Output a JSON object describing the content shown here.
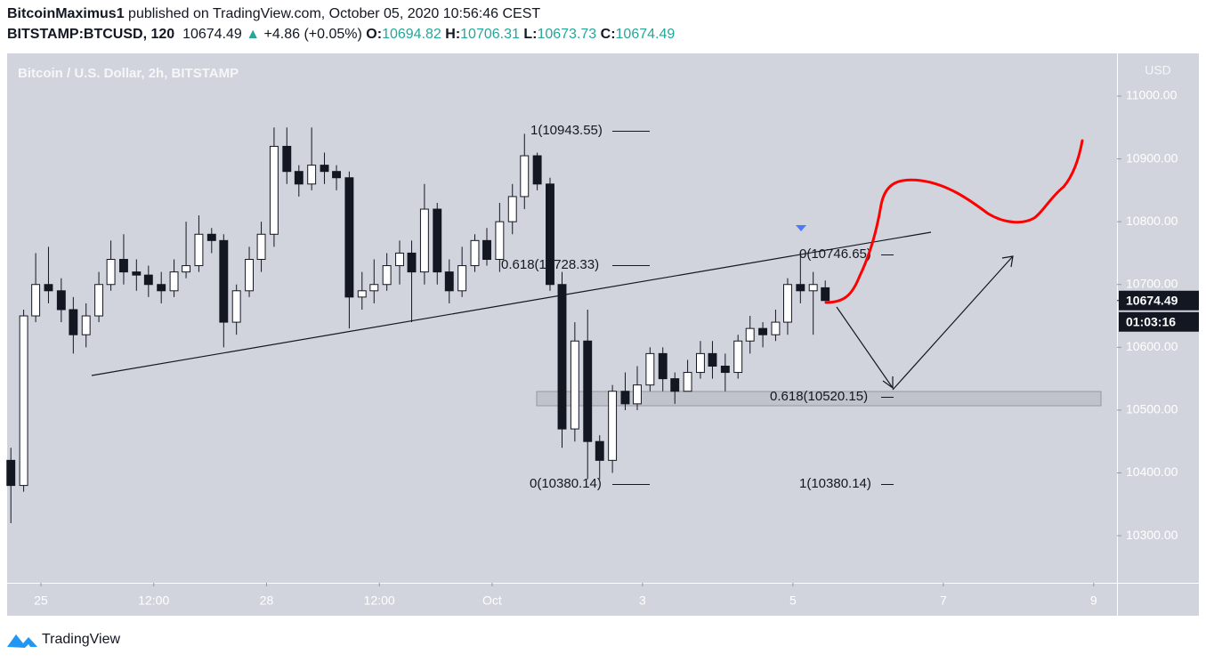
{
  "header": {
    "author": "BitcoinMaximus1",
    "published": "published on TradingView.com, October 05, 2020 10:56:46 CEST",
    "symbol": "BITSTAMP:BTCUSD, 120",
    "last": 10674.49,
    "arrow": "▲",
    "change": "+4.86 (+0.05%)",
    "o_label": "O:",
    "o": 10694.82,
    "h_label": "H:",
    "h": 10706.31,
    "l_label": "L:",
    "l": 10673.73,
    "c_label": "C:",
    "c": 10674.49
  },
  "chart_data": {
    "type": "candlestick",
    "title": "Bitcoin / U.S. Dollar, 2h, BITSTAMP",
    "y_axis_label": "USD",
    "up_color": "#ffffff",
    "down_color": "#131722",
    "x": [
      -0.4,
      -0.23,
      -0.07,
      0.1,
      0.27,
      0.43,
      0.6,
      0.77,
      0.93,
      1.1,
      1.27,
      1.43,
      1.6,
      1.77,
      1.93,
      2.1,
      2.27,
      2.43,
      2.6,
      2.77,
      2.93,
      3.1,
      3.27,
      3.43,
      3.6,
      3.77,
      3.93,
      4.1,
      4.27,
      4.43,
      4.6,
      4.77,
      4.93,
      5.1,
      5.27,
      5.43,
      5.6,
      5.77,
      5.93,
      6.1,
      6.27,
      6.43,
      6.6,
      6.77,
      6.93,
      7.1,
      7.27,
      7.43,
      7.6,
      7.77,
      7.93,
      8.1,
      8.27,
      8.43,
      8.6,
      8.77,
      8.93,
      9.1,
      9.27,
      9.43,
      9.6,
      9.77,
      9.93,
      10.1,
      10.27,
      10.43
    ],
    "open": [
      10420,
      10380,
      10650,
      10700,
      10690,
      10660,
      10620,
      10650,
      10700,
      10740,
      10720,
      10715,
      10700,
      10690,
      10720,
      10730,
      10780,
      10770,
      10640,
      10690,
      10740,
      10780,
      10920,
      10880,
      10860,
      10890,
      10880,
      10870,
      10680,
      10690,
      10700,
      10730,
      10750,
      10720,
      10820,
      10720,
      10690,
      10730,
      10770,
      10740,
      10800,
      10840,
      10905,
      10860,
      10700,
      10470,
      10610,
      10450,
      10420,
      10530,
      10510,
      10540,
      10590,
      10550,
      10530,
      10560,
      10590,
      10570,
      10560,
      10610,
      10630,
      10620,
      10640,
      10700,
      10690,
      10694.82
    ],
    "high": [
      10440,
      10660,
      10750,
      10760,
      10710,
      10680,
      10670,
      10720,
      10770,
      10780,
      10740,
      10730,
      10720,
      10740,
      10800,
      10810,
      10790,
      10780,
      10700,
      10760,
      10800,
      10950,
      10950,
      10890,
      10950,
      10910,
      10890,
      10880,
      10720,
      10740,
      10750,
      10770,
      10770,
      10860,
      10830,
      10740,
      10760,
      10780,
      10790,
      10830,
      10860,
      10940,
      10910,
      10870,
      10720,
      10640,
      10660,
      10460,
      10540,
      10560,
      10570,
      10600,
      10600,
      10560,
      10580,
      10610,
      10610,
      10590,
      10620,
      10650,
      10640,
      10660,
      10710,
      10750,
      10720,
      10706.31
    ],
    "low": [
      10320,
      10370,
      10640,
      10670,
      10640,
      10590,
      10600,
      10640,
      10690,
      10700,
      10690,
      10680,
      10670,
      10680,
      10710,
      10720,
      10750,
      10600,
      10620,
      10680,
      10720,
      10760,
      10860,
      10840,
      10850,
      10860,
      10850,
      10630,
      10660,
      10670,
      10690,
      10700,
      10640,
      10700,
      10700,
      10670,
      10680,
      10720,
      10730,
      10720,
      10780,
      10820,
      10850,
      10690,
      10440,
      10450,
      10390,
      10390,
      10400,
      10500,
      10500,
      10530,
      10530,
      10510,
      10530,
      10550,
      10550,
      10530,
      10550,
      10590,
      10600,
      10610,
      10620,
      10670,
      10620,
      10673.73
    ],
    "close": [
      10380,
      10650,
      10700,
      10690,
      10660,
      10620,
      10650,
      10700,
      10740,
      10720,
      10715,
      10700,
      10690,
      10720,
      10730,
      10780,
      10770,
      10640,
      10690,
      10740,
      10780,
      10920,
      10880,
      10860,
      10890,
      10880,
      10870,
      10680,
      10690,
      10700,
      10730,
      10750,
      10720,
      10820,
      10720,
      10690,
      10730,
      10770,
      10740,
      10800,
      10840,
      10905,
      10860,
      10700,
      10470,
      10610,
      10450,
      10420,
      10530,
      10510,
      10540,
      10590,
      10550,
      10530,
      10560,
      10590,
      10570,
      10560,
      10610,
      10630,
      10620,
      10640,
      10700,
      10690,
      10700,
      10674.49
    ],
    "xlim": [
      -0.45,
      14.31
    ],
    "ylim": [
      10225,
      11068
    ],
    "xticks": [
      {
        "value": 0,
        "label": "25"
      },
      {
        "value": 1.5,
        "label": "12:00"
      },
      {
        "value": 3,
        "label": "28"
      },
      {
        "value": 4.5,
        "label": "12:00"
      },
      {
        "value": 6,
        "label": "Oct"
      },
      {
        "value": 8,
        "label": "3"
      },
      {
        "value": 10,
        "label": "5"
      },
      {
        "value": 12,
        "label": "7"
      },
      {
        "value": 14,
        "label": "9"
      }
    ],
    "yticks": [
      {
        "value": 11000,
        "label": "11000.00"
      },
      {
        "value": 10900,
        "label": "10900.00"
      },
      {
        "value": 10800,
        "label": "10800.00"
      },
      {
        "value": 10700,
        "label": "10700.00"
      },
      {
        "value": 10600,
        "label": "10600.00"
      },
      {
        "value": 10500,
        "label": "10500.00"
      },
      {
        "value": 10400,
        "label": "10400.00"
      },
      {
        "value": 10300,
        "label": "10300.00"
      }
    ],
    "current_price": 10674.49,
    "countdown": "01:03:16"
  },
  "annotations": {
    "fib_top": "1(10943.55)",
    "fib_618_high": "0.618(10728.33)",
    "fib_zero_low": "0(10380.14)",
    "fib_zero_right": "0(10746.65)",
    "fib_618_low": "0.618(10520.15)",
    "fib_one_right": "1(10380.14)"
  },
  "footer": {
    "brand": "TradingView"
  }
}
